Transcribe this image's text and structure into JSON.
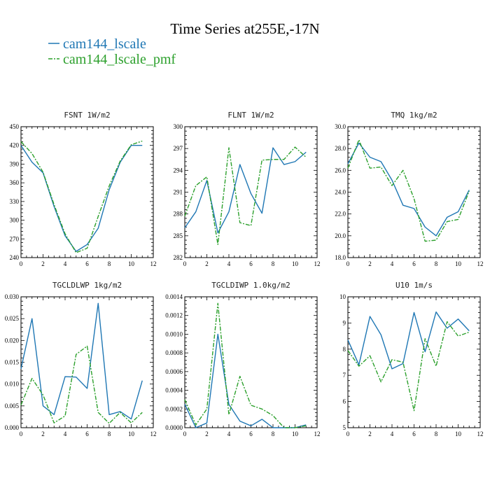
{
  "figure": {
    "title": "Time Series at255E,-17N",
    "legend": [
      {
        "label": "cam144_lscale",
        "color": "#1f77b4",
        "style": "solid"
      },
      {
        "label": "cam144_lscale_pmf",
        "color": "#2ca02c",
        "style": "dashdot"
      }
    ]
  },
  "chart_data": [
    {
      "type": "line",
      "title": "FSNT  1W/m2",
      "xlim": [
        0,
        12
      ],
      "ylim": [
        240,
        450
      ],
      "x_ticks": [
        0,
        2,
        4,
        6,
        8,
        10,
        12
      ],
      "x_tick_labels": [
        "0",
        "2",
        "4",
        "6",
        "8",
        "10",
        "12"
      ],
      "y_ticks": [
        240,
        270,
        300,
        330,
        360,
        390,
        420,
        450
      ],
      "y_tick_labels": [
        "240",
        "270",
        "300",
        "330",
        "360",
        "390",
        "420",
        "450"
      ],
      "x": [
        0,
        1,
        2,
        3,
        4,
        5,
        6,
        7,
        8,
        9,
        10,
        11
      ],
      "series": [
        {
          "name": "cam144_lscale",
          "values": [
            420,
            393,
            376,
            322,
            275,
            250,
            261,
            287,
            349,
            393,
            420,
            420
          ]
        },
        {
          "name": "cam144_lscale_pmf",
          "values": [
            426,
            407,
            377,
            325,
            278,
            248,
            255,
            306,
            355,
            395,
            421,
            427
          ]
        }
      ]
    },
    {
      "type": "line",
      "title": "FLNT  1W/m2",
      "xlim": [
        0,
        12
      ],
      "ylim": [
        282,
        300
      ],
      "x_ticks": [
        0,
        2,
        4,
        6,
        8,
        10,
        12
      ],
      "x_tick_labels": [
        "0",
        "2",
        "4",
        "6",
        "8",
        "10",
        "12"
      ],
      "y_ticks": [
        282,
        285,
        288,
        291,
        294,
        297,
        300
      ],
      "y_tick_labels": [
        "282",
        "285",
        "288",
        "291",
        "294",
        "297",
        "300"
      ],
      "x": [
        0,
        1,
        2,
        3,
        4,
        5,
        6,
        7,
        8,
        9,
        10,
        11
      ],
      "series": [
        {
          "name": "cam144_lscale",
          "values": [
            286.1,
            288.3,
            292.6,
            285.4,
            288.3,
            294.8,
            290.8,
            288.1,
            297.1,
            294.8,
            295.2,
            296.5
          ]
        },
        {
          "name": "cam144_lscale_pmf",
          "values": [
            287.7,
            291.9,
            293.1,
            283.8,
            297.1,
            286.8,
            286.4,
            295.4,
            295.5,
            295.5,
            297.2,
            295.8
          ]
        }
      ]
    },
    {
      "type": "line",
      "title": "TMQ  1kg/m2",
      "xlim": [
        0,
        12
      ],
      "ylim": [
        18,
        30
      ],
      "x_ticks": [
        0,
        2,
        4,
        6,
        8,
        10,
        12
      ],
      "x_tick_labels": [
        "0",
        "2",
        "4",
        "6",
        "8",
        "10",
        "12"
      ],
      "y_ticks": [
        18,
        20,
        22,
        24,
        26,
        28,
        30
      ],
      "y_tick_labels": [
        "18.0",
        "20.0",
        "22.0",
        "24.0",
        "26.0",
        "28.0",
        "30.0"
      ],
      "x": [
        0,
        1,
        2,
        3,
        4,
        5,
        6,
        7,
        8,
        9,
        10,
        11
      ],
      "series": [
        {
          "name": "cam144_lscale",
          "values": [
            26.6,
            28.5,
            27.2,
            26.8,
            25.1,
            22.8,
            22.5,
            20.8,
            20.0,
            21.7,
            22.2,
            24.2
          ]
        },
        {
          "name": "cam144_lscale_pmf",
          "values": [
            26.2,
            28.8,
            26.2,
            26.3,
            24.6,
            26.0,
            23.4,
            19.5,
            19.6,
            21.3,
            21.5,
            24.1
          ]
        }
      ]
    },
    {
      "type": "line",
      "title": "TGCLDLWP  1kg/m2",
      "xlim": [
        0,
        12
      ],
      "ylim": [
        0,
        0.03
      ],
      "x_ticks": [
        0,
        2,
        4,
        6,
        8,
        10,
        12
      ],
      "x_tick_labels": [
        "0",
        "2",
        "4",
        "6",
        "8",
        "10",
        "12"
      ],
      "y_ticks": [
        0,
        0.005,
        0.01,
        0.015,
        0.02,
        0.025,
        0.03
      ],
      "y_tick_labels": [
        "0.000",
        "0.005",
        "0.010",
        "0.015",
        "0.020",
        "0.025",
        "0.030"
      ],
      "x": [
        0,
        1,
        2,
        3,
        4,
        5,
        6,
        7,
        8,
        9,
        10,
        11
      ],
      "series": [
        {
          "name": "cam144_lscale",
          "values": [
            0.0135,
            0.025,
            0.005,
            0.003,
            0.0117,
            0.0116,
            0.009,
            0.0285,
            0.003,
            0.0037,
            0.002,
            0.0108
          ]
        },
        {
          "name": "cam144_lscale_pmf",
          "values": [
            0.0052,
            0.0113,
            0.0075,
            0.0011,
            0.0027,
            0.0168,
            0.0187,
            0.0035,
            0.001,
            0.0035,
            0.0011,
            0.0035
          ]
        }
      ]
    },
    {
      "type": "line",
      "title": "TGCLDIWP  1.0kg/m2",
      "xlim": [
        0,
        12
      ],
      "ylim": [
        0,
        0.0014
      ],
      "x_ticks": [
        0,
        2,
        4,
        6,
        8,
        10,
        12
      ],
      "x_tick_labels": [
        "0",
        "2",
        "4",
        "6",
        "8",
        "10",
        "12"
      ],
      "y_ticks": [
        0,
        0.0002,
        0.0004,
        0.0006,
        0.0008,
        0.001,
        0.0012,
        0.0014
      ],
      "y_tick_labels": [
        "0.0000",
        "0.0002",
        "0.0004",
        "0.0006",
        "0.0008",
        "0.0010",
        "0.0012",
        "0.0014"
      ],
      "x": [
        0,
        1,
        2,
        3,
        4,
        5,
        6,
        7,
        8,
        9,
        10,
        11
      ],
      "series": [
        {
          "name": "cam144_lscale",
          "values": [
            0.00025,
            0.0,
            5e-05,
            0.001,
            0.00025,
            7e-05,
            2e-05,
            9e-05,
            0.0,
            0.0,
            0.0,
            3e-05
          ]
        },
        {
          "name": "cam144_lscale_pmf",
          "values": [
            0.0003,
            3e-05,
            0.0002,
            0.00133,
            0.00014,
            0.00055,
            0.00024,
            0.0002,
            0.00013,
            0.0,
            0.0,
            2e-05
          ]
        }
      ]
    },
    {
      "type": "line",
      "title": "U10  1m/s",
      "xlim": [
        0,
        12
      ],
      "ylim": [
        5,
        10
      ],
      "x_ticks": [
        0,
        2,
        4,
        6,
        8,
        10,
        12
      ],
      "x_tick_labels": [
        "0",
        "2",
        "4",
        "6",
        "8",
        "10",
        "12"
      ],
      "y_ticks": [
        5,
        6,
        7,
        8,
        9,
        10
      ],
      "y_tick_labels": [
        "5",
        "6",
        "7",
        "8",
        "9",
        "10"
      ],
      "x": [
        0,
        1,
        2,
        3,
        4,
        5,
        6,
        7,
        8,
        9,
        10,
        11
      ],
      "series": [
        {
          "name": "cam144_lscale",
          "values": [
            8.35,
            7.4,
            9.25,
            8.55,
            7.25,
            7.45,
            9.4,
            7.9,
            9.42,
            8.8,
            9.15,
            8.7
          ]
        },
        {
          "name": "cam144_lscale_pmf",
          "values": [
            7.95,
            7.35,
            7.75,
            6.75,
            7.6,
            7.5,
            5.65,
            8.4,
            7.35,
            9.05,
            8.5,
            8.65
          ]
        }
      ]
    }
  ]
}
